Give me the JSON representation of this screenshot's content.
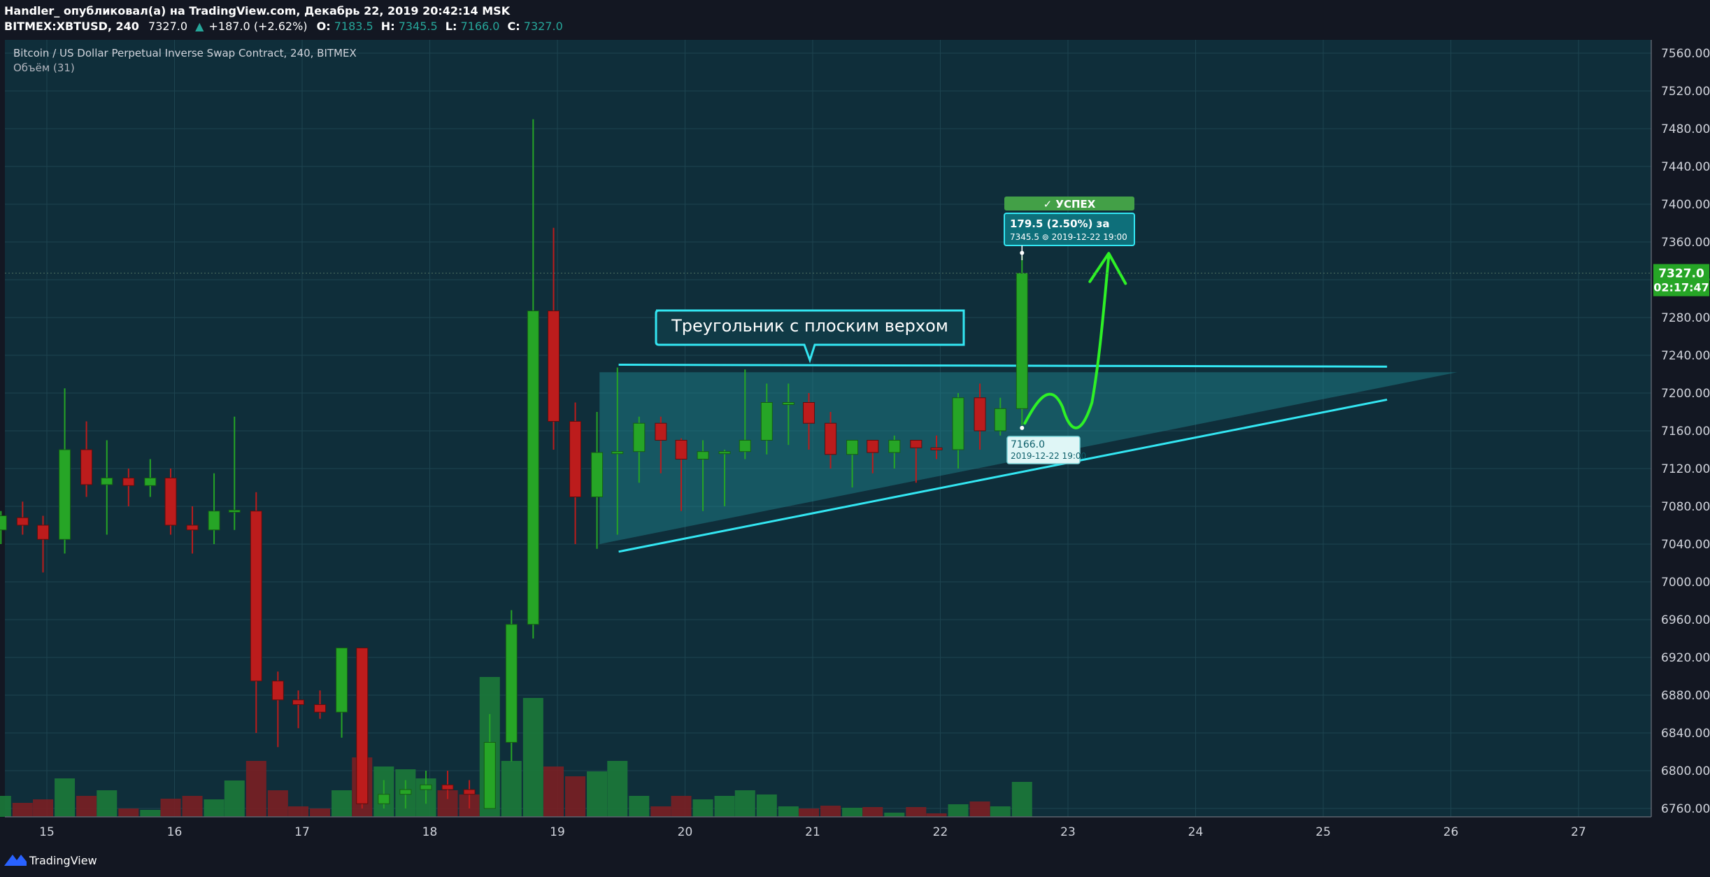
{
  "header": {
    "publish_line": "Handler_ опубликовал(а) на TradingView.com, Декабрь 22, 2019 20:42:14 MSK",
    "symbol": "BITMEX:XBTUSD, 240",
    "last": "7327.0",
    "change": "+187.0 (+2.62%)",
    "o_label": "O:",
    "o_value": "7183.5",
    "h_label": "H:",
    "h_value": "7345.5",
    "l_label": "L:",
    "l_value": "7166.0",
    "c_label": "C:",
    "c_value": "7327.0"
  },
  "legend": {
    "title": "Bitcoin / US Dollar Perpetual Inverse Swap Contract, 240, BITMEX",
    "volume": "Объём (31)"
  },
  "annotation": {
    "pattern_label": "Треугольник с плоским верхом",
    "success_label": "✓ УСПЕХ",
    "target_line1": "179.5 (2.50%) за",
    "target_line2": "7345.5 ⊚ 2019-12-22  19:00",
    "entry_line1": "7166.0",
    "entry_line2": "2019-12-22 19:00"
  },
  "price_label": {
    "value": "7327.0",
    "countdown": "02:17:47"
  },
  "footer": {
    "brand": "TradingView"
  },
  "colors": {
    "background": "#0f2e3a",
    "up": "#26a526",
    "down": "#bc1c1c",
    "pattern_line": "#33e6f2",
    "arrow": "#2ef026",
    "price_tag": "#26a526"
  },
  "chart_data": {
    "type": "candlestick",
    "ylim": [
      6740,
      7580
    ],
    "yticks": [
      7560,
      7520,
      7480,
      7440,
      7400,
      7360,
      7320,
      7280,
      7240,
      7200,
      7160,
      7120,
      7080,
      7040,
      7000,
      6960,
      6920,
      6880,
      6840,
      6800,
      6760
    ],
    "xticks": [
      "15",
      "16",
      "17",
      "18",
      "19",
      "20",
      "21",
      "22",
      "23",
      "24",
      "25",
      "26",
      "27"
    ],
    "candles": [
      {
        "x": 14.64,
        "o": 7055,
        "h": 7075,
        "l": 7040,
        "c": 7070,
        "v": 30
      },
      {
        "x": 14.81,
        "o": 7068,
        "h": 7085,
        "l": 7050,
        "c": 7060,
        "v": 20
      },
      {
        "x": 14.97,
        "o": 7060,
        "h": 7070,
        "l": 7010,
        "c": 7045,
        "v": 25
      },
      {
        "x": 15.14,
        "o": 7045,
        "h": 7205,
        "l": 7030,
        "c": 7140,
        "v": 55
      },
      {
        "x": 15.31,
        "o": 7140,
        "h": 7170,
        "l": 7090,
        "c": 7103,
        "v": 30
      },
      {
        "x": 15.47,
        "o": 7103,
        "h": 7150,
        "l": 7050,
        "c": 7110,
        "v": 38
      },
      {
        "x": 15.64,
        "o": 7110,
        "h": 7120,
        "l": 7080,
        "c": 7102,
        "v": 12
      },
      {
        "x": 15.81,
        "o": 7102,
        "h": 7130,
        "l": 7090,
        "c": 7110,
        "v": 10
      },
      {
        "x": 15.97,
        "o": 7110,
        "h": 7120,
        "l": 7050,
        "c": 7060,
        "v": 26
      },
      {
        "x": 16.14,
        "o": 7060,
        "h": 7080,
        "l": 7030,
        "c": 7055,
        "v": 30
      },
      {
        "x": 16.31,
        "o": 7055,
        "h": 7115,
        "l": 7040,
        "c": 7075,
        "v": 25
      },
      {
        "x": 16.47,
        "o": 7075,
        "h": 7175,
        "l": 7055,
        "c": 7076,
        "v": 52
      },
      {
        "x": 16.64,
        "o": 7075,
        "h": 7095,
        "l": 6840,
        "c": 6895,
        "v": 80
      },
      {
        "x": 16.81,
        "o": 6895,
        "h": 6905,
        "l": 6825,
        "c": 6875,
        "v": 38
      },
      {
        "x": 16.97,
        "o": 6875,
        "h": 6885,
        "l": 6845,
        "c": 6870,
        "v": 15
      },
      {
        "x": 17.14,
        "o": 6870,
        "h": 6885,
        "l": 6855,
        "c": 6862,
        "v": 12
      },
      {
        "x": 17.31,
        "o": 6862,
        "h": 6930,
        "l": 6835,
        "c": 6930,
        "v": 38
      },
      {
        "x": 17.47,
        "o": 6930,
        "h": 6930,
        "l": 6760,
        "c": 6765,
        "v": 85
      },
      {
        "x": 17.64,
        "o": 6765,
        "h": 6790,
        "l": 6760,
        "c": 6775,
        "v": 72
      },
      {
        "x": 17.81,
        "o": 6775,
        "h": 6790,
        "l": 6760,
        "c": 6780,
        "v": 68
      },
      {
        "x": 17.97,
        "o": 6780,
        "h": 6800,
        "l": 6765,
        "c": 6785,
        "v": 55
      },
      {
        "x": 18.14,
        "o": 6785,
        "h": 6800,
        "l": 6770,
        "c": 6780,
        "v": 38
      },
      {
        "x": 18.31,
        "o": 6780,
        "h": 6790,
        "l": 6760,
        "c": 6775,
        "v": 32
      },
      {
        "x": 18.47,
        "o": 6760,
        "h": 6860,
        "l": 6760,
        "c": 6830,
        "v": 200
      },
      {
        "x": 18.64,
        "o": 6830,
        "h": 6970,
        "l": 6810,
        "c": 6955,
        "v": 80
      },
      {
        "x": 18.81,
        "o": 6955,
        "h": 7490,
        "l": 6940,
        "c": 7287,
        "v": 170
      },
      {
        "x": 18.97,
        "o": 7287,
        "h": 7375,
        "l": 7140,
        "c": 7170,
        "v": 72
      },
      {
        "x": 19.14,
        "o": 7170,
        "h": 7190,
        "l": 7040,
        "c": 7090,
        "v": 58
      },
      {
        "x": 19.31,
        "o": 7090,
        "h": 7180,
        "l": 7035,
        "c": 7137,
        "v": 65
      },
      {
        "x": 19.47,
        "o": 7137,
        "h": 7227,
        "l": 7050,
        "c": 7138,
        "v": 80
      },
      {
        "x": 19.64,
        "o": 7138,
        "h": 7175,
        "l": 7105,
        "c": 7168,
        "v": 30
      },
      {
        "x": 19.81,
        "o": 7168,
        "h": 7175,
        "l": 7115,
        "c": 7150,
        "v": 15
      },
      {
        "x": 19.97,
        "o": 7150,
        "h": 7152,
        "l": 7075,
        "c": 7130,
        "v": 30
      },
      {
        "x": 20.14,
        "o": 7130,
        "h": 7150,
        "l": 7075,
        "c": 7138,
        "v": 25
      },
      {
        "x": 20.31,
        "o": 7138,
        "h": 7140,
        "l": 7080,
        "c": 7138,
        "v": 30
      },
      {
        "x": 20.47,
        "o": 7138,
        "h": 7225,
        "l": 7130,
        "c": 7150,
        "v": 38
      },
      {
        "x": 20.64,
        "o": 7150,
        "h": 7210,
        "l": 7135,
        "c": 7190,
        "v": 32
      },
      {
        "x": 20.81,
        "o": 7190,
        "h": 7210,
        "l": 7145,
        "c": 7190,
        "v": 15
      },
      {
        "x": 20.97,
        "o": 7190,
        "h": 7200,
        "l": 7140,
        "c": 7168,
        "v": 12
      },
      {
        "x": 21.14,
        "o": 7168,
        "h": 7180,
        "l": 7120,
        "c": 7135,
        "v": 16
      },
      {
        "x": 21.31,
        "o": 7135,
        "h": 7150,
        "l": 7100,
        "c": 7150,
        "v": 13
      },
      {
        "x": 21.47,
        "o": 7150,
        "h": 7150,
        "l": 7115,
        "c": 7137,
        "v": 14
      },
      {
        "x": 21.64,
        "o": 7137,
        "h": 7155,
        "l": 7120,
        "c": 7150,
        "v": 6
      },
      {
        "x": 21.81,
        "o": 7150,
        "h": 7150,
        "l": 7105,
        "c": 7142,
        "v": 14
      },
      {
        "x": 21.97,
        "o": 7142,
        "h": 7155,
        "l": 7130,
        "c": 7140,
        "v": 5
      },
      {
        "x": 22.14,
        "o": 7140,
        "h": 7200,
        "l": 7120,
        "c": 7195,
        "v": 18
      },
      {
        "x": 22.31,
        "o": 7195,
        "h": 7210,
        "l": 7140,
        "c": 7160,
        "v": 22
      },
      {
        "x": 22.47,
        "o": 7160,
        "h": 7195,
        "l": 7155,
        "c": 7183.5,
        "v": 15
      },
      {
        "x": 22.64,
        "o": 7183.5,
        "h": 7345.5,
        "l": 7166,
        "c": 7327,
        "v": 50
      }
    ],
    "pattern": {
      "top_line": [
        [
          19.48,
          7230
        ],
        [
          25.5,
          7228
        ]
      ],
      "bottom_line": [
        [
          19.48,
          7032
        ],
        [
          25.5,
          7193
        ]
      ],
      "triangle": [
        [
          19.33,
          7222
        ],
        [
          26.05,
          7222
        ],
        [
          19.33,
          7040
        ]
      ]
    }
  }
}
